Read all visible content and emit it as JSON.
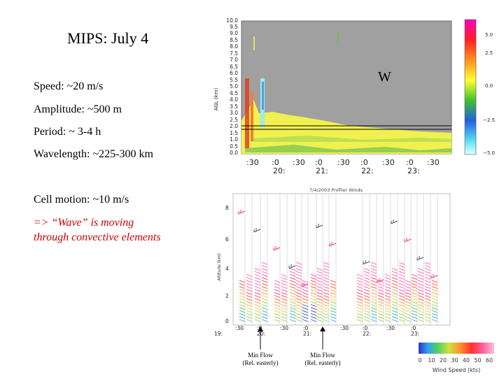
{
  "slide": {
    "title": "MIPS: July 4",
    "stats": {
      "speed": "Speed: ~20 m/s",
      "amplitude": "Amplitude: ~500 m",
      "period": "Period: ~ 3-4 h",
      "wavelength": "Wavelength: ~225-300 km",
      "cell_motion": "Cell motion: ~10 m/s"
    },
    "conclusion": [
      "=> “Wave” is moving",
      "through convective elements"
    ]
  },
  "top_plot": {
    "ylabel": "AGL (km)",
    "yticks": [
      "10.0",
      "9.5",
      "9.0",
      "8.5",
      "8.0",
      "7.5",
      "7.0",
      "6.5",
      "6.0",
      "5.5",
      "5.0",
      "4.5",
      "4.0",
      "3.5",
      "3.0",
      "2.5",
      "2.0",
      "1.5",
      "1.0",
      "0.5",
      "0.0"
    ],
    "xticks_min": [
      ":30",
      ":0",
      ":30",
      ":0",
      ":30",
      ":0",
      ":30",
      ":0",
      ":30"
    ],
    "xticks_hour": [
      "20:",
      "21:",
      "22:",
      "23:"
    ],
    "annotation": "W",
    "colorbar_ticks": [
      "5.0",
      "2.5",
      "0.0",
      "−2.5",
      "−5.0"
    ],
    "colors": {
      "background": "#a0a0a0",
      "low_layer": "#f0f050"
    }
  },
  "bottom_plot": {
    "title": "7/4/2003 Profiler Winds",
    "ylabel": "Altitude (km)",
    "yticks": [
      "8",
      "6",
      "4",
      "2",
      "0"
    ],
    "xticks_top": [
      ":30",
      ":0",
      ":30",
      ":0",
      ":30",
      ":0",
      ":30",
      ":0"
    ],
    "xticks_bottom": [
      "19:",
      "20:",
      "21:",
      "22:",
      "23:"
    ],
    "speed_scale_label": "Wind Speed (kts)",
    "speed_ticks": [
      "0",
      "10",
      "20",
      "30",
      "40",
      "50",
      "60"
    ]
  },
  "annotations": [
    {
      "line1": "Min Flow",
      "line2": "(Rel. easterly)"
    },
    {
      "line1": "Min Flow",
      "line2": "(Rel. easterly)"
    }
  ]
}
